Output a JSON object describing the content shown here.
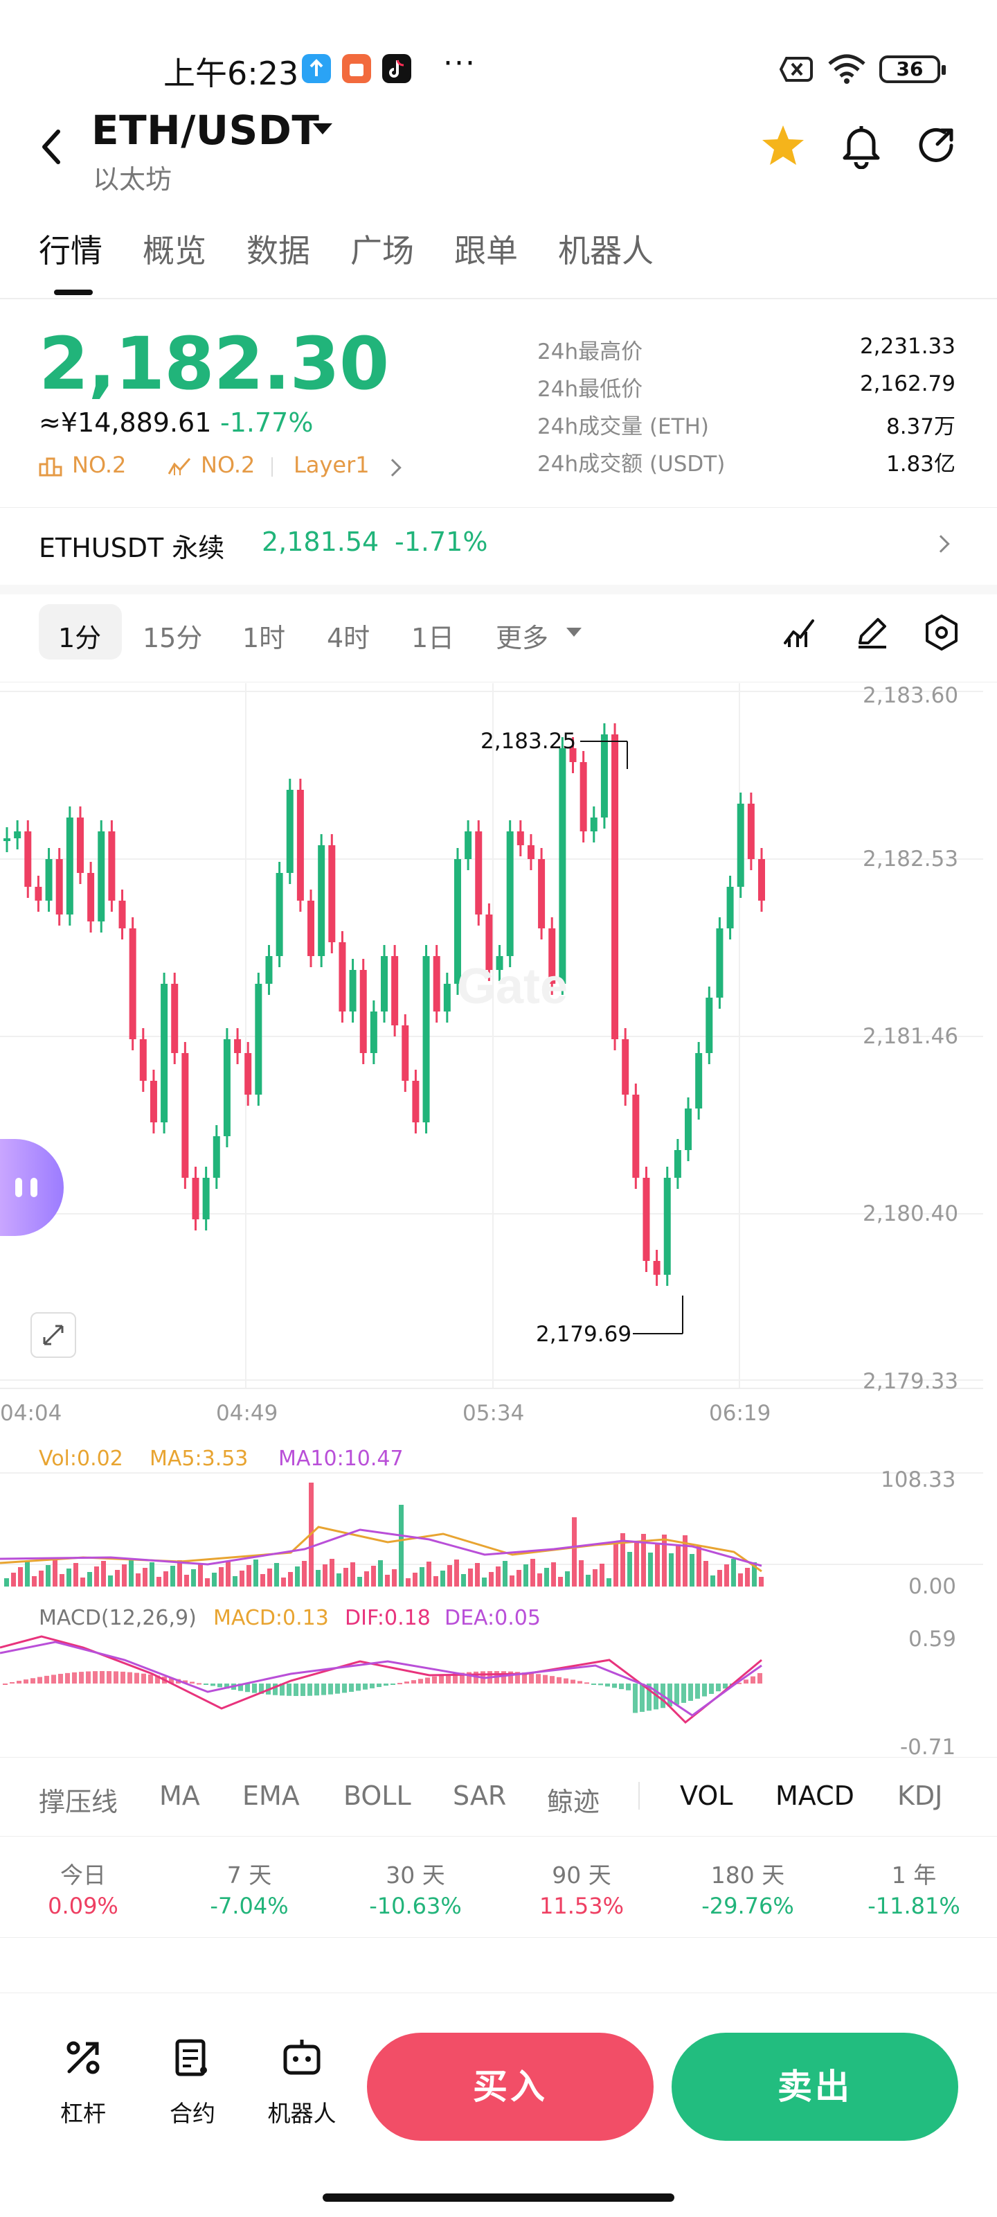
{
  "status_bar": {
    "time": "上午6:23",
    "more": "···",
    "battery": "36"
  },
  "header": {
    "pair": "ETH/USDT",
    "subtitle": "以太坊"
  },
  "tabs": [
    {
      "label": "行情"
    },
    {
      "label": "概览"
    },
    {
      "label": "数据"
    },
    {
      "label": "广场"
    },
    {
      "label": "跟单"
    },
    {
      "label": "机器人"
    }
  ],
  "price": {
    "last": "2,182.30",
    "cny": "≈¥14,889.61",
    "change": "-1.77%"
  },
  "tags": [
    {
      "label": "NO.2"
    },
    {
      "label": "NO.2"
    },
    {
      "label": "Layer1"
    }
  ],
  "stats": [
    {
      "label": "24h最高价",
      "value": "2,231.33"
    },
    {
      "label": "24h最低价",
      "value": "2,162.79"
    },
    {
      "label": "24h成交量 (ETH)",
      "value": "8.37万"
    },
    {
      "label": "24h成交额 (USDT)",
      "value": "1.83亿"
    }
  ],
  "perpetual": {
    "name": "ETHUSDT 永续",
    "price": "2,181.54",
    "change": "-1.71%"
  },
  "timeframes": [
    {
      "label": "1分"
    },
    {
      "label": "15分"
    },
    {
      "label": "1时"
    },
    {
      "label": "4时"
    },
    {
      "label": "1日"
    },
    {
      "label": "更多"
    }
  ],
  "chart_data": {
    "type": "candlestick",
    "price_axis": [
      "2,183.60",
      "2,182.53",
      "2,181.46",
      "2,180.40",
      "2,179.33"
    ],
    "time_axis": [
      "04:04",
      "04:49",
      "05:34",
      "06:19"
    ],
    "high_marker": "2,183.25",
    "low_marker": "2,179.69",
    "colors": {
      "up": "#21b47a",
      "down": "#ee3f62"
    }
  },
  "volume": {
    "vol": "Vol:0.02",
    "ma5": "MA5:3.53",
    "ma10": "MA10:10.47",
    "axis_max": "108.33",
    "axis_min": "0.00"
  },
  "macd": {
    "title": "MACD(12,26,9)",
    "macd": "MACD:0.13",
    "dif": "DIF:0.18",
    "dea": "DEA:0.05",
    "axis_max": "0.59",
    "axis_min": "-0.71"
  },
  "indicators": [
    {
      "label": "撑压线"
    },
    {
      "label": "MA"
    },
    {
      "label": "EMA"
    },
    {
      "label": "BOLL"
    },
    {
      "label": "SAR"
    },
    {
      "label": "鲸迹"
    },
    {
      "label": "VOL"
    },
    {
      "label": "MACD"
    },
    {
      "label": "KDJ"
    }
  ],
  "performance": [
    {
      "label": "今日",
      "value": "0.09%"
    },
    {
      "label": "7 天",
      "value": "-7.04%"
    },
    {
      "label": "30 天",
      "value": "-10.63%"
    },
    {
      "label": "90 天",
      "value": "11.53%"
    },
    {
      "label": "180 天",
      "value": "-29.76%"
    },
    {
      "label": "1 年",
      "value": "-11.81%"
    }
  ],
  "bottom_bar": {
    "leverage": "杠杆",
    "contract": "合约",
    "robot": "机器人",
    "buy": "买入",
    "sell": "卖出"
  }
}
